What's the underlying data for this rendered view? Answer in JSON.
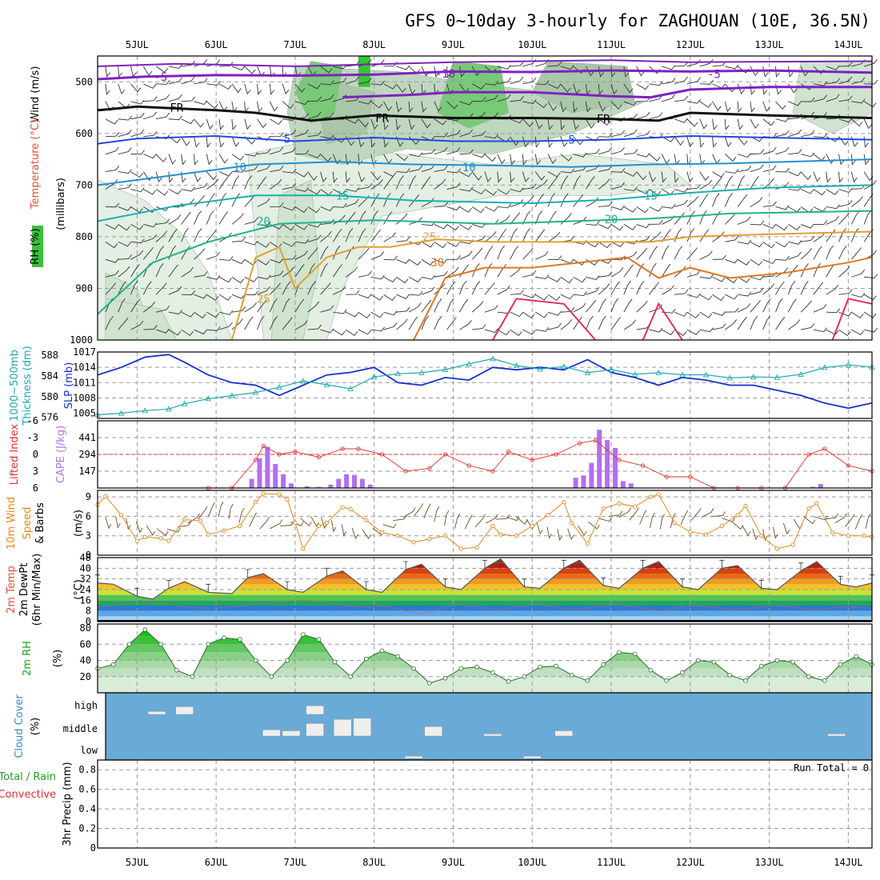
{
  "title": "GFS 0~10day 3-hourly for ZAGHOUAN (10E, 36.5N)",
  "dates": [
    "5JUL",
    "6JUL",
    "7JUL",
    "8JUL",
    "9JUL",
    "10JUL",
    "11JUL",
    "12JUL",
    "13JUL",
    "14JUL"
  ],
  "colors": {
    "rh_green": "#3cbf3c",
    "light_green": "#d9ecd9",
    "cloud_blue": "#6aaad6",
    "cloud_white": "#eeeeee",
    "slp_blue": "#1530d0",
    "thick_cyan": "#20a8b0",
    "cape_purple": "#b070f0",
    "li_red": "#e03030",
    "wind_orange": "#e08a20",
    "temp_gray": "#555555"
  },
  "panels": {
    "upper_air": {
      "ylabel_parts": [
        "Wind (m/s)",
        "Temperature (°C)",
        "RH (%)"
      ],
      "ylabel_units": "(millibars)",
      "yticks": [
        500,
        600,
        700,
        800,
        900,
        1000
      ],
      "ylim": [
        450,
        1000
      ],
      "contour_labels": [
        "-10",
        "-5",
        "-5",
        "FR",
        "FR",
        "FR",
        "5",
        "5",
        "10",
        "10",
        "15",
        "15",
        "20",
        "20",
        "25",
        "25",
        "30"
      ]
    },
    "slp": {
      "ylabel_left": "Thickness (dm)",
      "ylabel_left_prefix": "1000~500mb",
      "ylabel_right": "SLP (mb)",
      "yticks_left": [
        576,
        580,
        584,
        588
      ],
      "yticks_right": [
        1005,
        1008,
        1011,
        1014,
        1017
      ],
      "ylim_right": [
        1004,
        1017
      ]
    },
    "cape": {
      "ylabel_left": "Lifted Index",
      "ylabel_right": "CAPE (J/kg)",
      "yticks_left": [
        "-6",
        "-3",
        "0",
        "3",
        "6"
      ],
      "yticks_right": [
        "441",
        "294",
        "147"
      ],
      "ylim_cape": [
        0,
        588
      ]
    },
    "wind10": {
      "ylabel_parts": [
        "10m Wind",
        "Speed",
        "& Barbs",
        "(m/s)"
      ],
      "yticks": [
        0,
        3,
        6,
        9
      ],
      "ylim": [
        0,
        10
      ]
    },
    "temp2m": {
      "ylabel_parts": [
        "2m Temp",
        "2m DewPt",
        "(6hr Min/Max)",
        "(°C)"
      ],
      "yticks": [
        0,
        8,
        16,
        24,
        32,
        40,
        48
      ],
      "ylim": [
        0,
        48
      ]
    },
    "rh2m": {
      "ylabel_parts": [
        "2m RH",
        "(%)"
      ],
      "yticks": [
        20,
        40,
        60,
        80
      ],
      "ylim": [
        0,
        85
      ]
    },
    "cloud": {
      "ylabel_parts": [
        "Cloud Cover",
        "(%)"
      ],
      "levels": [
        "high",
        "middle",
        "low"
      ]
    },
    "precip": {
      "ylabel_parts": [
        "Total / Rain",
        "Convective",
        "3hr Precip (mm)"
      ],
      "yticks": [
        "0",
        "0.2",
        "0.4",
        "0.6",
        "0.8"
      ],
      "ylim": [
        0,
        0.9
      ],
      "run_total": "Run Total = 0"
    }
  },
  "chart_data": [
    {
      "type": "line",
      "title": "SLP and 1000~500mb Thickness",
      "x_days": [
        4.5,
        4.8,
        5.1,
        5.4,
        5.6,
        5.9,
        6.2,
        6.5,
        6.8,
        7.1,
        7.4,
        7.7,
        8.0,
        8.3,
        8.6,
        8.9,
        9.2,
        9.5,
        9.8,
        10.1,
        10.4,
        10.7,
        11.0,
        11.3,
        11.6,
        11.9,
        12.2,
        12.5,
        12.8,
        13.1,
        13.4,
        13.7,
        14.0,
        14.3
      ],
      "series": [
        {
          "name": "SLP (mb)",
          "values": [
            1012.5,
            1014.0,
            1016.0,
            1016.5,
            1015.0,
            1012.5,
            1011.0,
            1010.5,
            1008.5,
            1010.5,
            1012.5,
            1013.0,
            1014.0,
            1011.0,
            1010.5,
            1012.0,
            1011.5,
            1014.0,
            1013.5,
            1014.0,
            1013.5,
            1015.5,
            1013.0,
            1012.0,
            1010.5,
            1012.0,
            1011.5,
            1010.5,
            1010.5,
            1009.5,
            1008.5,
            1007.0,
            1006.0,
            1007.0
          ]
        },
        {
          "name": "Thickness (dm)",
          "values": [
            576.5,
            576.8,
            577.3,
            577.6,
            578.6,
            579.6,
            580.2,
            580.8,
            581.8,
            583.0,
            582.3,
            581.5,
            583.8,
            584.4,
            584.6,
            585.2,
            586.3,
            587.3,
            586.0,
            585.3,
            585.8,
            584.6,
            585.2,
            584.3,
            584.6,
            584.2,
            584.2,
            583.6,
            583.8,
            583.7,
            584.3,
            585.6,
            586.1,
            585.7
          ]
        }
      ]
    },
    {
      "type": "bar",
      "title": "CAPE (J/kg) and Lifted Index",
      "x_days": [
        6.45,
        6.55,
        6.65,
        6.75,
        6.85,
        6.95,
        7.15,
        7.3,
        7.45,
        7.55,
        7.65,
        7.75,
        7.85,
        7.95,
        10.55,
        10.65,
        10.75,
        10.85,
        10.95,
        11.05,
        11.15,
        11.25,
        13.55,
        13.65
      ],
      "cape": [
        80,
        260,
        360,
        210,
        120,
        40,
        15,
        10,
        30,
        80,
        120,
        115,
        80,
        30,
        90,
        110,
        220,
        510,
        420,
        350,
        60,
        40,
        10,
        35
      ],
      "lifted_index_x_days": [
        5.9,
        6.2,
        6.5,
        6.6,
        6.8,
        7.0,
        7.3,
        7.6,
        7.8,
        8.1,
        8.4,
        8.7,
        8.9,
        9.2,
        9.5,
        9.7,
        10.0,
        10.3,
        10.6,
        10.8,
        11.1,
        11.4,
        11.7,
        12.0,
        12.3,
        12.6,
        12.9,
        13.2,
        13.5,
        13.7,
        14.0,
        14.3
      ],
      "lifted_index": [
        6,
        6,
        1,
        -1.5,
        0,
        -0.5,
        0.5,
        -1,
        -1,
        0,
        3,
        2.5,
        0,
        2,
        3,
        -0.5,
        1,
        0,
        -2,
        -2.5,
        1,
        2,
        4,
        4,
        6,
        6,
        6,
        6,
        0,
        -1,
        2,
        3
      ]
    },
    {
      "type": "line",
      "title": "10m Wind Speed",
      "ylabel": "(m/s)",
      "x_days": [
        4.5,
        4.6,
        4.8,
        5.0,
        5.1,
        5.3,
        5.4,
        5.6,
        5.8,
        5.9,
        6.1,
        6.3,
        6.5,
        6.6,
        6.8,
        6.9,
        7.0,
        7.1,
        7.3,
        7.4,
        7.6,
        7.7,
        7.9,
        8.1,
        8.3,
        8.5,
        8.7,
        8.9,
        9.1,
        9.3,
        9.5,
        9.6,
        9.8,
        10.0,
        10.2,
        10.4,
        10.5,
        10.7,
        10.9,
        11.1,
        11.3,
        11.5,
        11.6,
        11.8,
        12.0,
        12.2,
        12.4,
        12.6,
        12.7,
        12.9,
        13.1,
        13.3,
        13.5,
        13.6,
        13.8,
        14.0,
        14.2,
        14.3
      ],
      "values": [
        7.8,
        9.1,
        6.2,
        2.2,
        2.8,
        2.6,
        2.2,
        5.5,
        5.3,
        3.2,
        3.8,
        4.5,
        8.2,
        9.5,
        9.4,
        8.6,
        5.0,
        1.0,
        4.5,
        5.0,
        7.4,
        7.1,
        5.4,
        3.5,
        3.0,
        2.0,
        2.5,
        3.0,
        1.0,
        1.2,
        4.5,
        3.2,
        3.0,
        4.5,
        6.2,
        8.2,
        5.0,
        1.8,
        7.2,
        8.0,
        7.5,
        9.0,
        9.4,
        5.0,
        3.6,
        3.2,
        4.5,
        6.2,
        7.6,
        3.0,
        1.0,
        1.6,
        7.2,
        8.0,
        3.5,
        3.0,
        3.0,
        2.8
      ]
    },
    {
      "type": "area",
      "title": "2m Temp and DewPt",
      "x_days": [
        4.5,
        4.7,
        5.0,
        5.2,
        5.4,
        5.6,
        5.9,
        6.2,
        6.4,
        6.6,
        6.9,
        7.1,
        7.4,
        7.6,
        7.9,
        8.1,
        8.4,
        8.6,
        8.9,
        9.1,
        9.4,
        9.6,
        9.9,
        10.1,
        10.4,
        10.6,
        10.9,
        11.1,
        11.4,
        11.6,
        11.9,
        12.1,
        12.4,
        12.6,
        12.9,
        13.1,
        13.4,
        13.6,
        13.9,
        14.1,
        14.3
      ],
      "series": [
        {
          "name": "2m Temp",
          "values": [
            29,
            28,
            19,
            17,
            25,
            30,
            22,
            21,
            33,
            36,
            24,
            22,
            34,
            38,
            24,
            22,
            39,
            43,
            26,
            24,
            40,
            47,
            26,
            25,
            40,
            46,
            27,
            25,
            40,
            45,
            26,
            24,
            40,
            42,
            25,
            24,
            38,
            45,
            28,
            26,
            29
          ]
        },
        {
          "name": "2m DewPt",
          "values": [
            11,
            12,
            14,
            14,
            13,
            11,
            10,
            11,
            12,
            14,
            15,
            16,
            14,
            12,
            11,
            12,
            8,
            6,
            11,
            13,
            10,
            9,
            12,
            13,
            10,
            9,
            12,
            13,
            10,
            8,
            11,
            12,
            10,
            9,
            11,
            12,
            10,
            9,
            11,
            11,
            10
          ]
        }
      ]
    },
    {
      "type": "area",
      "title": "2m RH",
      "ylabel": "(%)",
      "x_days": [
        4.5,
        4.7,
        4.9,
        5.1,
        5.3,
        5.5,
        5.7,
        5.9,
        6.1,
        6.3,
        6.5,
        6.7,
        6.9,
        7.1,
        7.3,
        7.5,
        7.7,
        7.9,
        8.1,
        8.3,
        8.5,
        8.7,
        8.9,
        9.1,
        9.3,
        9.5,
        9.7,
        9.9,
        10.1,
        10.3,
        10.5,
        10.7,
        10.9,
        11.1,
        11.3,
        11.5,
        11.7,
        11.9,
        12.1,
        12.3,
        12.5,
        12.7,
        12.9,
        13.1,
        13.3,
        13.5,
        13.7,
        13.9,
        14.1,
        14.3
      ],
      "values": [
        30,
        35,
        60,
        78,
        60,
        28,
        20,
        60,
        68,
        66,
        40,
        20,
        40,
        72,
        66,
        38,
        20,
        42,
        52,
        45,
        30,
        12,
        18,
        30,
        32,
        25,
        14,
        20,
        32,
        33,
        22,
        15,
        35,
        50,
        48,
        28,
        15,
        25,
        40,
        38,
        22,
        15,
        33,
        40,
        38,
        20,
        15,
        35,
        45,
        35
      ]
    },
    {
      "type": "bar",
      "title": "Cloud Cover",
      "ylabel": "(%)",
      "categories": [
        "high",
        "middle",
        "low"
      ],
      "high_cloud": [
        {
          "x_days": 5.25,
          "value": 15
        },
        {
          "x_days": 5.6,
          "value": 40
        },
        {
          "x_days": 7.25,
          "value": 45
        }
      ],
      "middle_cloud": [
        {
          "x_days": 6.7,
          "value": 30
        },
        {
          "x_days": 6.95,
          "value": 25
        },
        {
          "x_days": 7.25,
          "value": 60
        },
        {
          "x_days": 7.6,
          "value": 80
        },
        {
          "x_days": 7.85,
          "value": 85
        },
        {
          "x_days": 8.75,
          "value": 45
        },
        {
          "x_days": 9.5,
          "value": 10
        },
        {
          "x_days": 10.4,
          "value": 25
        },
        {
          "x_days": 13.85,
          "value": 10
        }
      ],
      "low_cloud": [
        {
          "x_days": 8.5,
          "value": 10
        },
        {
          "x_days": 10.0,
          "value": 10
        }
      ]
    },
    {
      "type": "bar",
      "title": "3hr Precip (mm)",
      "ylabel": "3hr Precip (mm)",
      "values": [],
      "ylim": [
        0,
        0.9
      ]
    }
  ]
}
